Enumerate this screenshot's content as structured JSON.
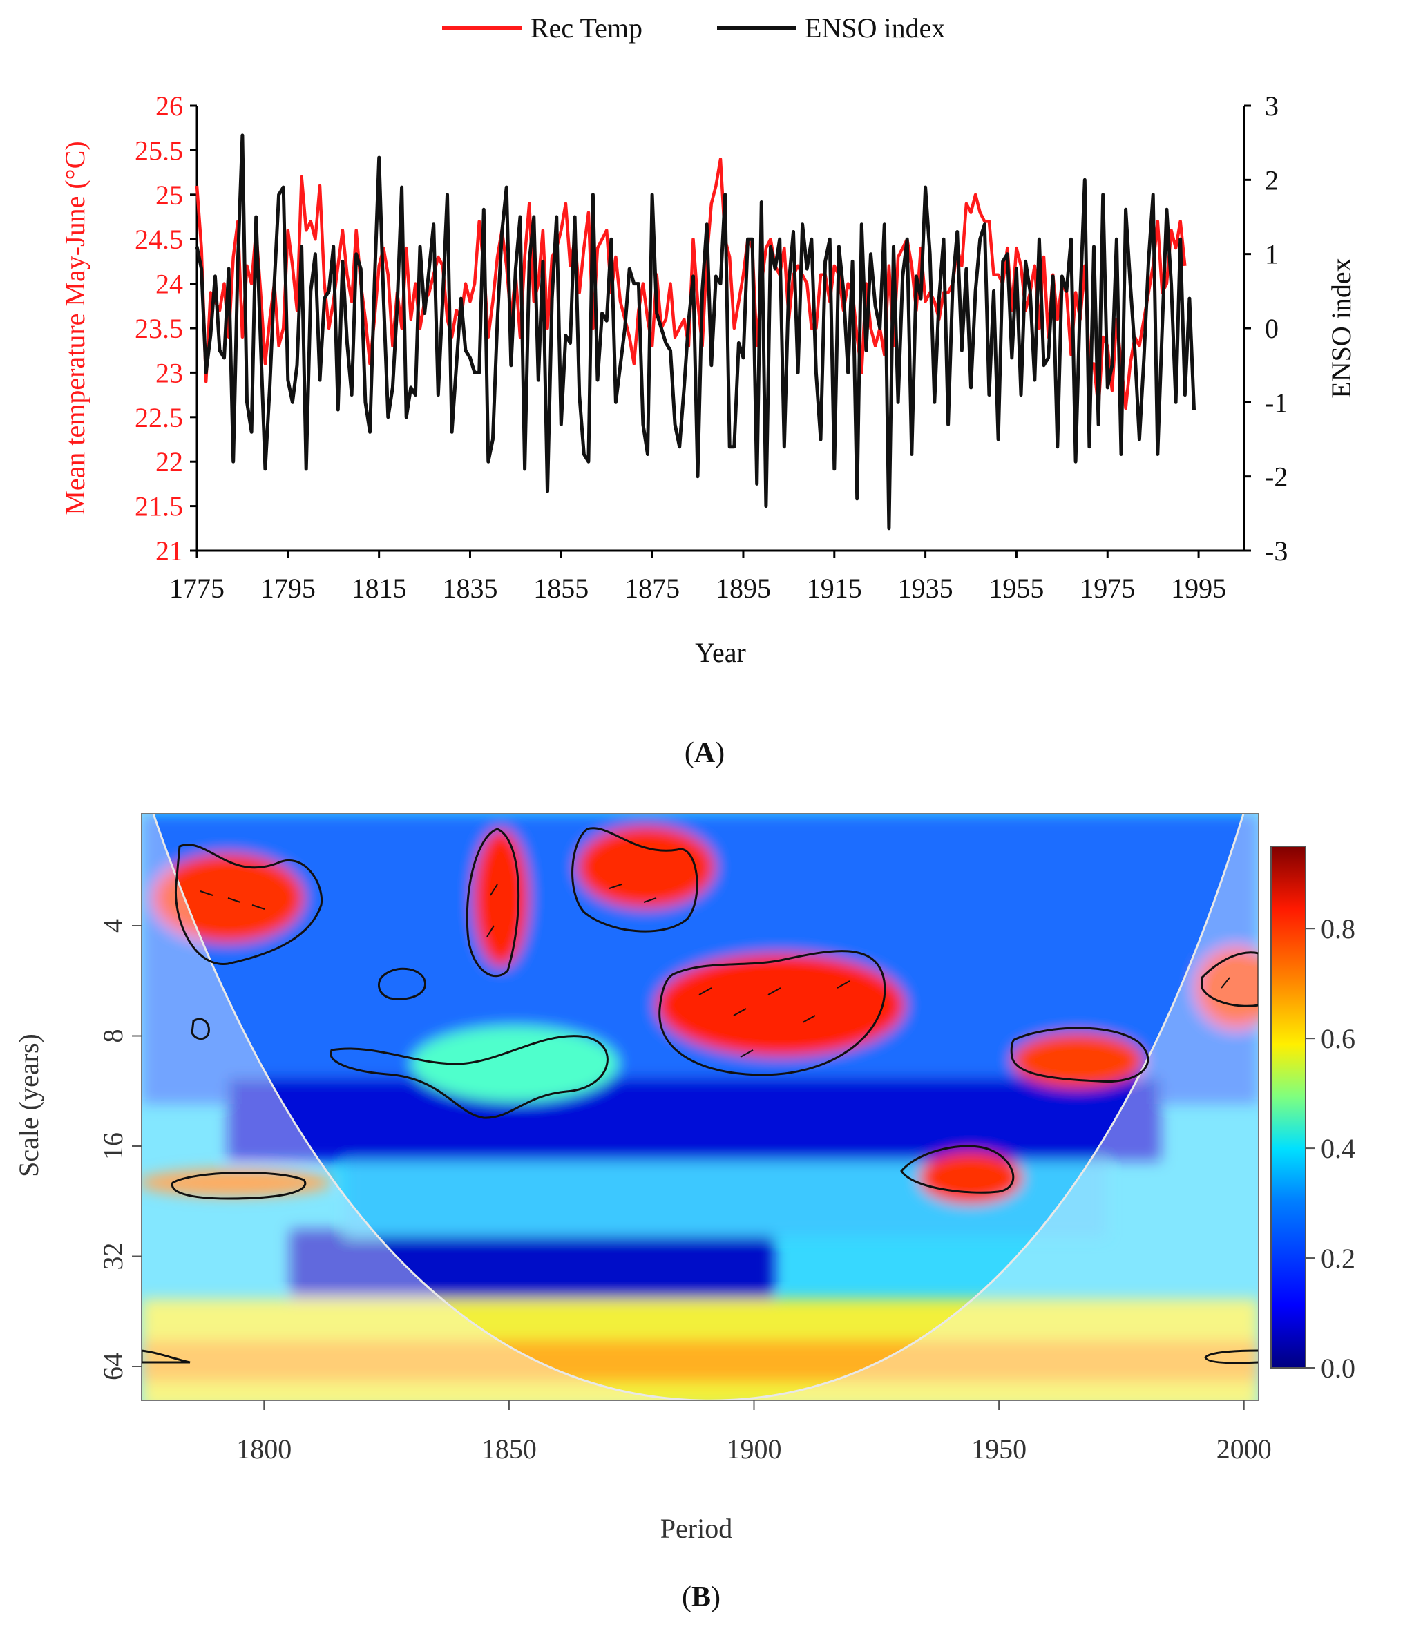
{
  "chart_data": [
    {
      "id": "A",
      "type": "line",
      "panel_label_open": "(",
      "panel_label": "A",
      "panel_label_close": ")",
      "xlabel": "Year",
      "ylabel_left": "Mean temperature May-June (°C)",
      "ylabel_right": "ENSO index",
      "xlim": [
        1775,
        2005
      ],
      "ylim_left": [
        21,
        26
      ],
      "ylim_right": [
        -3,
        3
      ],
      "x_ticks": [
        "1775",
        "1795",
        "1815",
        "1835",
        "1855",
        "1875",
        "1895",
        "1915",
        "1935",
        "1955",
        "1975",
        "1995"
      ],
      "y_ticks_left": [
        "21",
        "21.5",
        "22",
        "22.5",
        "23",
        "23.5",
        "24",
        "24.5",
        "25",
        "25.5",
        "26"
      ],
      "y_ticks_right": [
        "-3",
        "-2",
        "-1",
        "0",
        "1",
        "2",
        "3"
      ],
      "legend": [
        {
          "name": "Rec Temp",
          "color": "#ff1a1a"
        },
        {
          "name": "ENSO index",
          "color": "#111111"
        }
      ],
      "series": [
        {
          "name": "Rec Temp",
          "axis": "left",
          "color": "#ff1a1a",
          "x_start": 1775,
          "values": [
            25.1,
            24.4,
            22.9,
            23.9,
            23.8,
            23.7,
            24.0,
            23.4,
            24.3,
            24.7,
            23.4,
            24.2,
            24.0,
            24.6,
            23.9,
            23.1,
            23.6,
            24.0,
            23.3,
            23.5,
            24.6,
            24.2,
            23.7,
            25.2,
            24.6,
            24.7,
            24.5,
            25.1,
            24.0,
            23.5,
            23.8,
            24.2,
            24.6,
            24.1,
            23.8,
            24.6,
            24.0,
            23.6,
            23.1,
            23.6,
            24.2,
            24.4,
            24.1,
            23.3,
            23.9,
            23.5,
            24.4,
            23.6,
            24.0,
            23.5,
            23.8,
            23.9,
            24.1,
            24.3,
            24.2,
            23.6,
            23.4,
            23.7,
            23.6,
            24.0,
            23.8,
            24.0,
            24.7,
            24.2,
            23.4,
            23.8,
            24.3,
            24.6,
            24.2,
            23.6,
            24.1,
            23.4,
            24.3,
            24.9,
            23.8,
            24.0,
            24.6,
            23.5,
            24.3,
            24.4,
            24.6,
            24.9,
            24.2,
            24.5,
            23.9,
            24.4,
            24.8,
            23.5,
            24.4,
            24.5,
            24.6,
            23.9,
            24.3,
            23.8,
            23.6,
            23.4,
            23.1,
            23.7,
            24.0,
            23.6,
            23.3,
            24.1,
            23.5,
            23.6,
            24.0,
            23.4,
            23.5,
            23.6,
            23.3,
            24.5,
            23.8,
            23.3,
            24.3,
            24.9,
            25.1,
            25.4,
            24.5,
            24.3,
            23.5,
            23.8,
            24.1,
            24.5,
            24.4,
            23.3,
            24.0,
            24.4,
            24.5,
            24.2,
            24.1,
            24.4,
            23.6,
            24.1,
            24.2,
            24.1,
            24.0,
            23.5,
            23.5,
            24.1,
            24.1,
            23.8,
            24.2,
            24.1,
            23.7,
            24.0,
            23.9,
            23.4,
            23.0,
            24.0,
            23.5,
            23.3,
            23.5,
            23.2,
            24.2,
            23.3,
            24.3,
            24.4,
            24.5,
            24.2,
            23.7,
            24.4,
            23.8,
            23.9,
            23.8,
            23.6,
            23.9,
            23.9,
            24.0,
            24.4,
            24.2,
            24.9,
            24.8,
            25.0,
            24.8,
            24.7,
            24.7,
            24.1,
            24.1,
            24.0,
            24.4,
            23.7,
            24.4,
            24.2,
            23.7,
            23.9,
            24.2,
            23.5,
            24.3,
            23.4,
            24.1,
            23.6,
            24.0,
            23.9,
            23.2,
            23.9,
            23.6,
            24.2,
            23.1,
            23.1,
            22.6,
            23.4,
            23.3,
            22.8,
            23.6,
            23.1,
            22.6,
            23.1,
            23.4,
            23.3,
            23.6,
            23.9,
            24.2,
            24.7,
            23.9,
            24.0,
            24.6,
            24.4,
            24.7,
            24.2
          ]
        },
        {
          "name": "ENSO index",
          "axis": "right",
          "color": "#111111",
          "x_start": 1775,
          "values": [
            1.1,
            0.8,
            -0.6,
            -0.1,
            0.7,
            -0.3,
            -0.4,
            0.8,
            -1.8,
            0.9,
            2.6,
            -1.0,
            -1.4,
            1.5,
            -0.2,
            -1.9,
            -0.8,
            0.6,
            1.8,
            1.9,
            -0.7,
            -1.0,
            -0.5,
            1.1,
            -1.9,
            0.5,
            1.0,
            -0.7,
            0.4,
            0.5,
            1.1,
            -1.1,
            0.9,
            -0.2,
            -0.9,
            1.0,
            0.8,
            -1.0,
            -1.4,
            0.6,
            2.3,
            0.4,
            -1.2,
            -0.8,
            0.3,
            1.9,
            -1.2,
            -0.8,
            -0.9,
            1.1,
            0.2,
            0.8,
            1.4,
            -0.9,
            0.4,
            1.8,
            -1.4,
            -0.5,
            0.4,
            -0.3,
            -0.4,
            -0.6,
            -0.6,
            1.6,
            -1.8,
            -1.5,
            0.1,
            1.3,
            1.9,
            -0.5,
            0.8,
            1.5,
            -1.9,
            0.9,
            1.5,
            -0.7,
            0.9,
            -2.2,
            0.4,
            1.5,
            -1.3,
            -0.1,
            -0.2,
            1.5,
            -0.9,
            -1.7,
            -1.8,
            1.8,
            -0.7,
            0.2,
            0.1,
            1.2,
            -1.0,
            -0.5,
            0.0,
            0.8,
            0.6,
            0.6,
            -1.3,
            -1.7,
            1.8,
            0.2,
            0.0,
            -0.2,
            -0.3,
            -1.3,
            -1.6,
            -0.8,
            0.1,
            0.7,
            -2.0,
            0.5,
            1.4,
            -0.5,
            0.7,
            0.6,
            1.8,
            -1.6,
            -1.6,
            -0.2,
            -0.4,
            1.2,
            1.2,
            -2.1,
            1.7,
            -2.4,
            1.1,
            0.8,
            1.2,
            -1.6,
            0.6,
            1.3,
            -0.6,
            1.4,
            0.8,
            1.2,
            -0.6,
            -1.5,
            0.9,
            1.2,
            -1.9,
            1.1,
            0.5,
            -0.6,
            0.9,
            -2.3,
            1.4,
            -0.3,
            1.0,
            0.3,
            0.0,
            1.4,
            -2.7,
            1.1,
            -1.0,
            0.7,
            1.2,
            -1.7,
            0.7,
            0.4,
            1.9,
            1.0,
            -1.0,
            0.4,
            1.2,
            -1.3,
            0.6,
            1.3,
            -0.3,
            0.8,
            -0.8,
            0.5,
            1.2,
            1.4,
            -0.9,
            0.5,
            -1.5,
            0.9,
            1.0,
            -0.4,
            0.8,
            -0.9,
            0.9,
            0.5,
            -0.7,
            1.2,
            -0.5,
            -0.4,
            0.7,
            -1.6,
            0.7,
            0.5,
            1.2,
            -1.8,
            0.4,
            2.0,
            -1.6,
            1.1,
            -1.3,
            1.8,
            -0.8,
            -0.5,
            1.2,
            -1.7,
            1.6,
            0.6,
            -0.3,
            -1.5,
            -0.4,
            0.9,
            1.8,
            -1.7,
            0.0,
            1.6,
            0.6,
            -1.0,
            1.2,
            -0.9,
            0.4,
            -1.1
          ]
        }
      ]
    },
    {
      "id": "B",
      "type": "heatmap",
      "panel_label_open": "(",
      "panel_label": "B",
      "panel_label_close": ")",
      "xlabel": "Period",
      "ylabel": "Scale (years)",
      "xlim": [
        1775,
        2003
      ],
      "x_ticks": [
        "1800",
        "1850",
        "1900",
        "1950",
        "2000"
      ],
      "y_ticks": [
        "4",
        "8",
        "16",
        "32",
        "64"
      ],
      "colorbar_range": [
        0,
        0.95
      ],
      "colorbar_ticks": [
        "0.0",
        "0.2",
        "0.4",
        "0.6",
        "0.8"
      ],
      "colormap": [
        "#00007f",
        "#0000ff",
        "#007fff",
        "#00e0ff",
        "#7fff7f",
        "#ffef00",
        "#ff7f00",
        "#ff1a00",
        "#7f0000"
      ],
      "cone_of_influence": true
    }
  ]
}
